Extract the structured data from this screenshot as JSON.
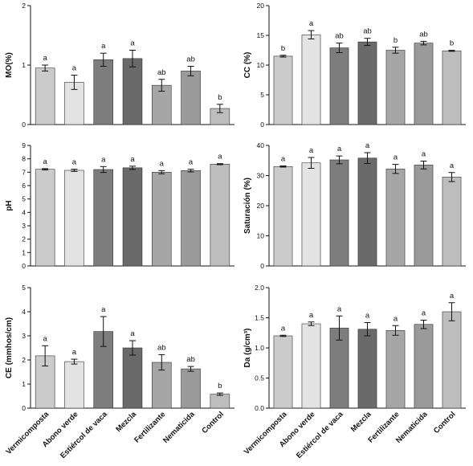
{
  "chart_data": [
    {
      "type": "bar",
      "ylabel": "MO(%)",
      "categories": [
        "Vermicomposta",
        "Abono verde",
        "Estiércol de vaca",
        "Mezcla",
        "Fertilizante",
        "Nematicida",
        "Control"
      ],
      "values": [
        0.95,
        0.71,
        1.09,
        1.11,
        0.66,
        0.9,
        0.27
      ],
      "errors": [
        0.05,
        0.12,
        0.11,
        0.14,
        0.1,
        0.08,
        0.07
      ],
      "letters": [
        "a",
        "a",
        "a",
        "a",
        "ab",
        "ab",
        "b"
      ],
      "ylim": [
        0,
        2
      ],
      "yticks": [
        "0",
        "1",
        "2"
      ],
      "show_xlabels": false
    },
    {
      "type": "bar",
      "ylabel": "CC (%)",
      "categories": [
        "Vermicomposta",
        "Abono verde",
        "Estiércol de vaca",
        "Mezcla",
        "Fertilizante",
        "Nematicida",
        "Control"
      ],
      "values": [
        11.5,
        15.1,
        12.9,
        13.9,
        12.5,
        13.7,
        12.4
      ],
      "errors": [
        0.15,
        0.7,
        0.8,
        0.6,
        0.5,
        0.3,
        0.08
      ],
      "letters": [
        "b",
        "a",
        "ab",
        "ab",
        "b",
        "ab",
        "b"
      ],
      "ylim": [
        0,
        20
      ],
      "yticks": [
        "0",
        "5",
        "10",
        "15",
        "20"
      ],
      "show_xlabels": false
    },
    {
      "type": "bar",
      "ylabel": "pH",
      "categories": [
        "Vermicomposta",
        "Abono verde",
        "Estiércol de vaca",
        "Mezcla",
        "Fertilizante",
        "Nematicida",
        "Control"
      ],
      "values": [
        7.22,
        7.14,
        7.2,
        7.33,
        7.0,
        7.12,
        7.6
      ],
      "errors": [
        0.05,
        0.08,
        0.22,
        0.12,
        0.12,
        0.1,
        0.04
      ],
      "letters": [
        "a",
        "a",
        "a",
        "a",
        "a",
        "a",
        "a"
      ],
      "ylim": [
        0,
        9
      ],
      "yticks": [
        "0",
        "1",
        "2",
        "3",
        "4",
        "5",
        "6",
        "7",
        "8",
        "9"
      ],
      "show_xlabels": false
    },
    {
      "type": "bar",
      "ylabel": "Saturación (%)",
      "categories": [
        "Vermicomposta",
        "Abono verde",
        "Estiércol de vaca",
        "Mezcla",
        "Fertilizante",
        "Nematicida",
        "Control"
      ],
      "values": [
        33.0,
        34.2,
        35.2,
        35.8,
        32.2,
        33.5,
        29.5
      ],
      "errors": [
        0.2,
        1.8,
        1.3,
        1.8,
        1.5,
        1.3,
        1.5
      ],
      "letters": [
        "a",
        "a",
        "a",
        "a",
        "a",
        "a",
        "a"
      ],
      "ylim": [
        0,
        40
      ],
      "yticks": [
        "0",
        "10",
        "20",
        "30",
        "40"
      ],
      "show_xlabels": false
    },
    {
      "type": "bar",
      "ylabel": "CE (mmhos/cm)",
      "categories": [
        "Vermicomposta",
        "Abono verde",
        "Estiércol de vaca",
        "Mezcla",
        "Fertilizante",
        "Nematicida",
        "Control"
      ],
      "values": [
        2.17,
        1.93,
        3.18,
        2.5,
        1.9,
        1.63,
        0.58
      ],
      "errors": [
        0.42,
        0.1,
        0.62,
        0.3,
        0.32,
        0.1,
        0.05
      ],
      "letters": [
        "a",
        "a",
        "a",
        "a",
        "ab",
        "ab",
        "b"
      ],
      "ylim": [
        0,
        5
      ],
      "yticks": [
        "0",
        "1",
        "2",
        "3",
        "4",
        "5"
      ],
      "show_xlabels": true
    },
    {
      "type": "bar",
      "ylabel": "Da (g/cm³)",
      "categories": [
        "Vermicomposta",
        "Abono verde",
        "Estiércol de vaca",
        "Mezcla",
        "Fertilizante",
        "Nematicida",
        "Control"
      ],
      "values": [
        1.2,
        1.4,
        1.33,
        1.31,
        1.29,
        1.39,
        1.6
      ],
      "errors": [
        0.01,
        0.03,
        0.2,
        0.11,
        0.08,
        0.07,
        0.15
      ],
      "letters": [
        "a",
        "a",
        "a",
        "a",
        "a",
        "a",
        "a"
      ],
      "ylim": [
        0,
        2.0
      ],
      "yticks": [
        "0.0",
        "0.5",
        "1.0",
        "1.5",
        "2.0"
      ],
      "show_xlabels": true
    }
  ],
  "bar_colors": [
    "#cbcbcb",
    "#e3e3e3",
    "#7d7d7d",
    "#6a6a6a",
    "#a6a6a6",
    "#9a9a9a",
    "#bdbdbd"
  ]
}
